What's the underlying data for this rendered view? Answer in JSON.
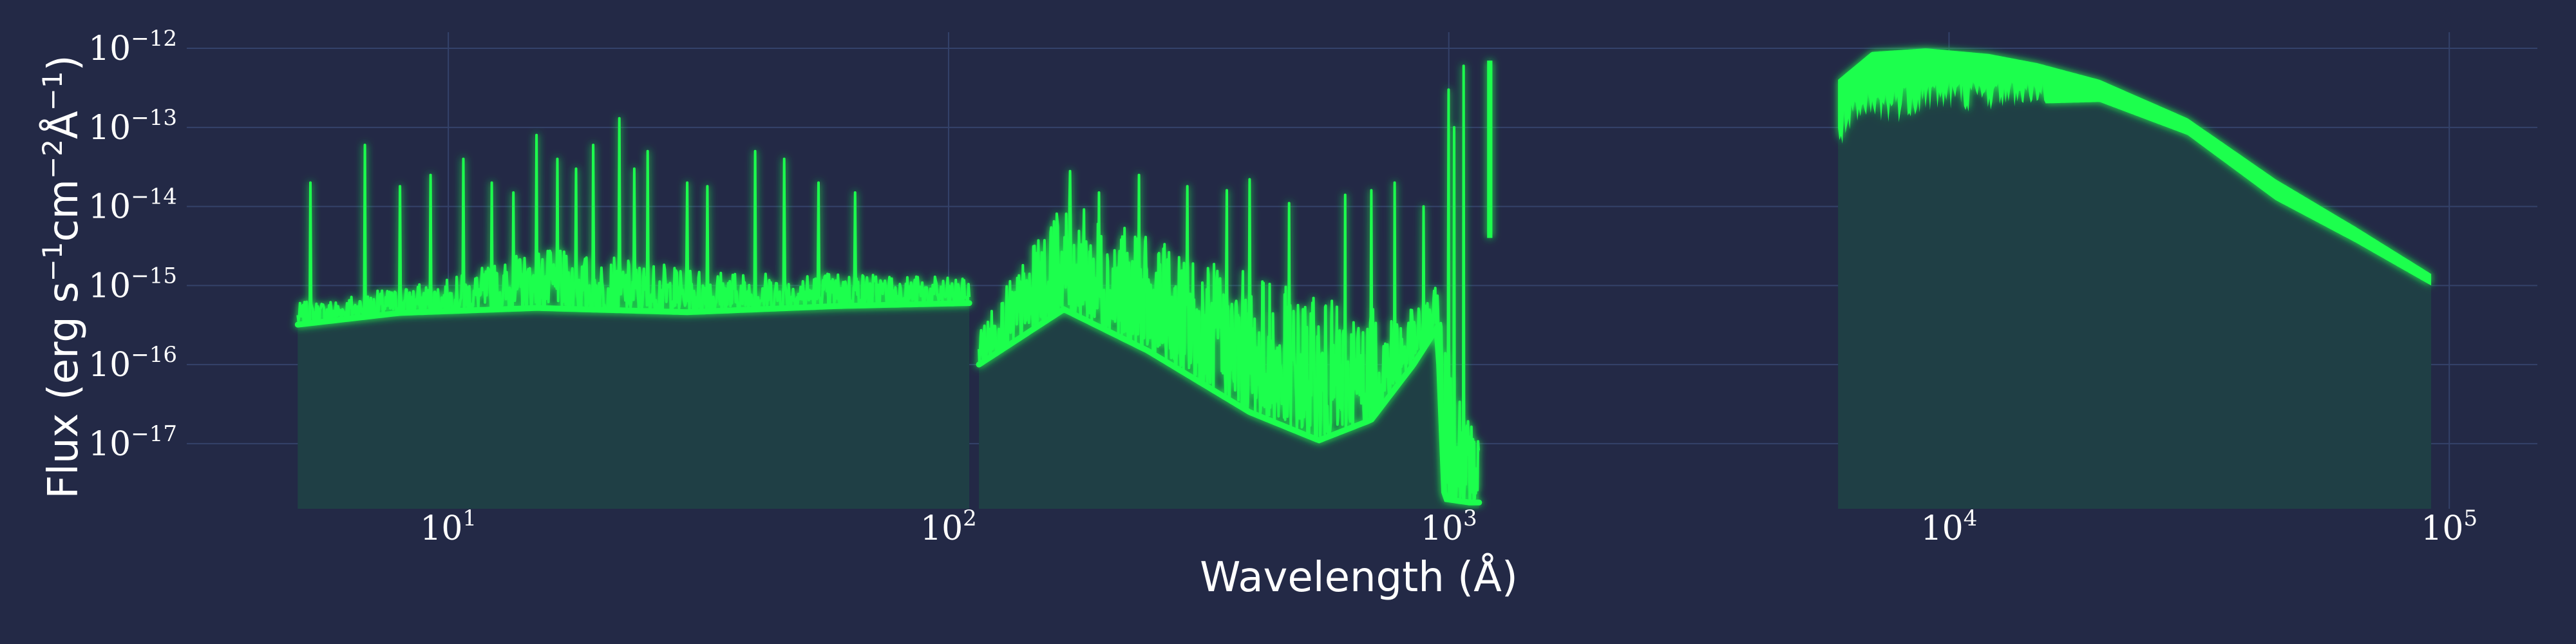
{
  "chart_data": {
    "type": "line",
    "title": "",
    "xlabel": "Wavelength (Å)",
    "ylabel": "Flux (erg s⁻¹cm⁻²Å⁻¹)",
    "x_scale": "log",
    "y_scale": "log",
    "xlim": [
      3.0,
      150000
    ],
    "ylim": [
      1.5e-18,
      1.6e-12
    ],
    "grid": true,
    "colors": {
      "background": "#232946",
      "line": "#1eff4e",
      "fill": "#1f3f45",
      "grid": "#34426a",
      "text": "#ffffff"
    },
    "x_ticks": [
      {
        "value": 10,
        "base": "10",
        "exp": "1"
      },
      {
        "value": 100,
        "base": "10",
        "exp": "2"
      },
      {
        "value": 1000,
        "base": "10",
        "exp": "3"
      },
      {
        "value": 10000,
        "base": "10",
        "exp": "4"
      },
      {
        "value": 100000,
        "base": "10",
        "exp": "5"
      }
    ],
    "y_ticks": [
      {
        "value": 1e-12,
        "base": "10",
        "exp": "−12"
      },
      {
        "value": 1e-13,
        "base": "10",
        "exp": "−13"
      },
      {
        "value": 1e-14,
        "base": "10",
        "exp": "−14"
      },
      {
        "value": 1e-15,
        "base": "10",
        "exp": "−15"
      },
      {
        "value": 1e-16,
        "base": "10",
        "exp": "−16"
      },
      {
        "value": 1e-17,
        "base": "10",
        "exp": "−17"
      }
    ],
    "segments": [
      {
        "x_range": [
          5,
          110
        ],
        "continuum": [
          [
            5,
            3.2e-16
          ],
          [
            8,
            4.5e-16
          ],
          [
            15,
            5.2e-16
          ],
          [
            30,
            4.6e-16
          ],
          [
            60,
            5.5e-16
          ],
          [
            110,
            6e-16
          ]
        ],
        "envelope": [
          [
            5,
            6e-16
          ],
          [
            10,
            1.2e-15
          ],
          [
            15,
            3e-15
          ],
          [
            25,
            2e-15
          ],
          [
            40,
            1.5e-15
          ],
          [
            70,
            1.5e-15
          ],
          [
            110,
            1.2e-15
          ]
        ],
        "lines": [
          [
            5.3,
            2e-14
          ],
          [
            6.8,
            6e-14
          ],
          [
            8.0,
            1.8e-14
          ],
          [
            9.2,
            2.5e-14
          ],
          [
            10.7,
            4e-14
          ],
          [
            12.2,
            2e-14
          ],
          [
            13.5,
            1.5e-14
          ],
          [
            15.0,
            8e-14
          ],
          [
            16.5,
            4e-14
          ],
          [
            18.0,
            3e-14
          ],
          [
            19.5,
            6e-14
          ],
          [
            22.0,
            1.3e-13
          ],
          [
            23.5,
            3e-14
          ],
          [
            25.0,
            5e-14
          ],
          [
            30.0,
            2e-14
          ],
          [
            33.0,
            1.8e-14
          ],
          [
            41.0,
            5e-14
          ],
          [
            47.0,
            4e-14
          ],
          [
            55.0,
            2e-14
          ],
          [
            65.0,
            1.5e-14
          ]
        ]
      },
      {
        "x_range": [
          115,
          1150
        ],
        "continuum": [
          [
            115,
            1e-16
          ],
          [
            170,
            5e-16
          ],
          [
            250,
            1.5e-16
          ],
          [
            400,
            2.5e-17
          ],
          [
            550,
            1.1e-17
          ],
          [
            700,
            2e-17
          ],
          [
            850,
            1e-16
          ],
          [
            950,
            3e-16
          ],
          [
            980,
            2e-18
          ],
          [
            1100,
            1.8e-18
          ]
        ],
        "envelope": [
          [
            115,
            3e-16
          ],
          [
            170,
            1.2e-14
          ],
          [
            250,
            4e-15
          ],
          [
            400,
            1.5e-15
          ],
          [
            550,
            7e-16
          ],
          [
            700,
            5e-16
          ],
          [
            850,
            5e-16
          ],
          [
            950,
            1e-15
          ],
          [
            1100,
            2e-17
          ]
        ],
        "lines": [
          [
            175,
            2.8e-14
          ],
          [
            200,
            1.5e-14
          ],
          [
            240,
            2.5e-14
          ],
          [
            300,
            1.8e-14
          ],
          [
            360,
            1.6e-14
          ],
          [
            400,
            2.2e-14
          ],
          [
            480,
            1.1e-14
          ],
          [
            620,
            1.4e-14
          ],
          [
            700,
            1.6e-14
          ],
          [
            780,
            2e-14
          ],
          [
            890,
            1e-14
          ],
          [
            1000,
            3e-13
          ],
          [
            1025,
            1e-13
          ],
          [
            1070,
            6e-13
          ]
        ]
      },
      {
        "x_range": [
          1200,
          1215
        ],
        "lines": [
          [
            1215,
            7e-13
          ]
        ],
        "floor": 4e-15
      },
      {
        "x_range": [
          6000,
          92000
        ],
        "thick_band": [
          [
            6000,
            5e-14,
            4e-13
          ],
          [
            7000,
            9e-14,
            9e-13
          ],
          [
            9000,
            1.5e-13,
            1e-12
          ],
          [
            12000,
            1.6e-13,
            8.5e-13
          ],
          [
            15000,
            2e-13,
            6.5e-13
          ],
          [
            20000,
            2.1e-13,
            4e-13
          ],
          [
            30000,
            8e-14,
            1.3e-13
          ],
          [
            45000,
            1.2e-14,
            2.2e-14
          ],
          [
            65000,
            3.5e-15,
            5.5e-15
          ],
          [
            92000,
            1e-15,
            1.4e-15
          ]
        ]
      }
    ]
  }
}
